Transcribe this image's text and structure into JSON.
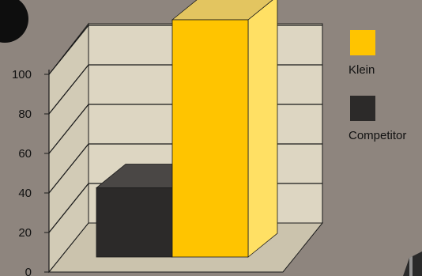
{
  "chart_data": {
    "type": "bar",
    "categories": [
      "Competitor",
      "Klein"
    ],
    "values": [
      35,
      120
    ],
    "ylim": [
      0,
      120
    ],
    "yticks": [
      0,
      20,
      40,
      60,
      80,
      100
    ],
    "series": [
      {
        "name": "Klein",
        "value": 120,
        "color": "#ffc400"
      },
      {
        "name": "Competitor",
        "value": 35,
        "color": "#2c2a29"
      }
    ],
    "grid": true,
    "legend_position": "right"
  },
  "colors": {
    "background": "#8e857e",
    "wall": "#ddd6c2",
    "grid_line": "#1a1a1a",
    "klein": "#ffc400",
    "competitor": "#2c2a29"
  },
  "icons": [
    "badge-circle-icon",
    "corner-object-icon"
  ]
}
